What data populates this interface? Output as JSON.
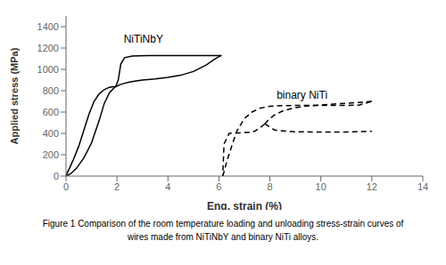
{
  "chart_data": {
    "type": "line",
    "xlabel": "Eng. strain (%)",
    "ylabel": "Applied stress (MPa)",
    "xlim": [
      0,
      14
    ],
    "ylim": [
      0,
      1500
    ],
    "xticks": [
      0,
      2,
      4,
      6,
      8,
      10,
      12,
      14
    ],
    "yticks": [
      0,
      200,
      400,
      600,
      800,
      1000,
      1200,
      1400
    ],
    "grid": false,
    "annotations": [
      {
        "text": "NiTiNbY",
        "x": 2.3,
        "y": 1240
      },
      {
        "text": "binary NiTi",
        "x": 8.3,
        "y": 720
      }
    ],
    "caption": [
      "Figure 1 Comparison of the room temperature loading and unloading stress-strain curves of",
      "wires made from NiTiNbY and binary NiTi alloys."
    ],
    "series": [
      {
        "color": "#000000",
        "line_style": "solid",
        "x": [
          0,
          0.05,
          0.15,
          0.3,
          0.5,
          0.7,
          0.9,
          1.1,
          1.3,
          1.5,
          1.7,
          1.85,
          1.95,
          2.05,
          2.15,
          2.3,
          2.6,
          3.2,
          4.0,
          5.0,
          5.5,
          5.8,
          6.0,
          6.1
        ],
        "values": [
          0,
          30,
          80,
          160,
          280,
          430,
          580,
          700,
          770,
          810,
          832,
          838,
          840,
          900,
          1050,
          1110,
          1125,
          1130,
          1130,
          1130,
          1130,
          1130,
          1130,
          1130
        ]
      },
      {
        "color": "#000000",
        "line_style": "solid",
        "x": [
          6.1,
          6.0,
          5.8,
          5.5,
          5.0,
          4.5,
          4.0,
          3.5,
          3.0,
          2.7,
          2.5,
          2.3,
          2.1,
          1.9,
          1.7,
          1.5,
          1.3,
          1.0,
          0.7,
          0.4,
          0.2,
          0.05,
          0.0
        ],
        "values": [
          1130,
          1120,
          1090,
          1040,
          980,
          945,
          925,
          910,
          900,
          890,
          882,
          870,
          855,
          830,
          780,
          680,
          520,
          310,
          170,
          70,
          25,
          5,
          0
        ]
      },
      {
        "color": "#000000",
        "line_style": "dashed",
        "x": [
          6.15,
          6.2,
          6.3,
          6.5,
          6.7,
          7.0,
          7.3,
          7.6,
          8.0,
          8.5,
          9.0,
          9.5,
          10.0,
          10.5,
          11.0,
          11.5,
          12.0
        ],
        "values": [
          0,
          40,
          130,
          280,
          420,
          540,
          600,
          635,
          655,
          660,
          662,
          662,
          662,
          662,
          662,
          665,
          700
        ]
      },
      {
        "color": "#000000",
        "line_style": "dashed",
        "x": [
          12.0,
          11.8,
          11.5,
          11.0,
          10.5,
          10.0,
          9.5,
          9.0,
          8.5,
          8.2,
          8.0,
          7.8
        ],
        "values": [
          700,
          695,
          690,
          682,
          675,
          665,
          658,
          642,
          610,
          575,
          540,
          490
        ]
      },
      {
        "color": "#000000",
        "line_style": "dashed",
        "x": [
          7.8,
          8.2,
          9.0,
          10.0,
          11.0,
          12.0
        ],
        "values": [
          490,
          430,
          415,
          412,
          413,
          420
        ]
      },
      {
        "color": "#000000",
        "line_style": "dashed",
        "x": [
          7.8,
          7.6,
          7.4,
          7.2,
          7.0,
          6.8,
          6.6,
          6.4,
          6.2,
          6.15
        ],
        "values": [
          490,
          450,
          420,
          410,
          408,
          405,
          403,
          400,
          300,
          0
        ]
      }
    ]
  }
}
